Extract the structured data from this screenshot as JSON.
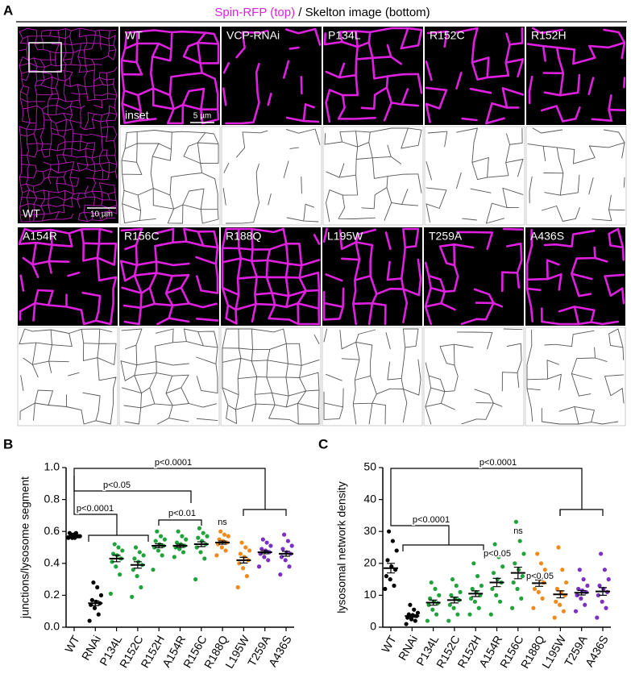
{
  "panel_a": {
    "letter": "A",
    "title_magenta": "Spin-RFP (top)",
    "title_black": " / Skelton image (bottom)",
    "overview_label": "WT",
    "overview_scale": "10 µm",
    "inset_label": "inset",
    "inset_scale": "5 µm",
    "row1": [
      "WT",
      "VCP-RNAi",
      "P134L",
      "R152C",
      "R152H"
    ],
    "row2": [
      "A154R",
      "R156C",
      "R188Q",
      "L195W",
      "T259A",
      "A436S"
    ]
  },
  "chart_data": [
    {
      "type": "dotplot",
      "letter": "B",
      "ylabel": "junctions/lysosome segment",
      "categories": [
        "WT",
        "RNAi",
        "P134L",
        "R152C",
        "R152H",
        "A154R",
        "R156C",
        "R188Q",
        "L195W",
        "T259A",
        "A436S"
      ],
      "colors": [
        "#000000",
        "#000000",
        "#1fa33a",
        "#1fa33a",
        "#1fa33a",
        "#1fa33a",
        "#1fa33a",
        "#f08a1c",
        "#f08a1c",
        "#7b2fc4",
        "#7b2fc4"
      ],
      "points": [
        [
          0.56,
          0.57,
          0.58,
          0.59,
          0.57,
          0.56,
          0.58,
          0.57,
          0.59,
          0.56
        ],
        [
          0.04,
          0.08,
          0.12,
          0.14,
          0.15,
          0.16,
          0.17,
          0.2,
          0.25,
          0.28
        ],
        [
          0.21,
          0.33,
          0.38,
          0.41,
          0.43,
          0.45,
          0.46,
          0.48,
          0.5,
          0.52
        ],
        [
          0.19,
          0.25,
          0.32,
          0.36,
          0.39,
          0.41,
          0.43,
          0.45,
          0.47,
          0.5
        ],
        [
          0.36,
          0.45,
          0.48,
          0.5,
          0.51,
          0.52,
          0.54,
          0.55,
          0.57,
          0.6
        ],
        [
          0.44,
          0.47,
          0.49,
          0.5,
          0.51,
          0.52,
          0.53,
          0.55,
          0.57,
          0.6
        ],
        [
          0.3,
          0.43,
          0.47,
          0.5,
          0.52,
          0.54,
          0.56,
          0.57,
          0.59,
          0.62
        ],
        [
          0.45,
          0.48,
          0.5,
          0.52,
          0.53,
          0.54,
          0.55,
          0.57,
          0.58,
          0.6
        ],
        [
          0.25,
          0.32,
          0.37,
          0.4,
          0.42,
          0.44,
          0.46,
          0.48,
          0.5,
          0.53
        ],
        [
          0.38,
          0.42,
          0.44,
          0.46,
          0.47,
          0.48,
          0.49,
          0.51,
          0.53,
          0.55
        ],
        [
          0.33,
          0.38,
          0.42,
          0.44,
          0.46,
          0.47,
          0.49,
          0.51,
          0.54,
          0.58
        ]
      ],
      "means": [
        0.57,
        0.15,
        0.43,
        0.39,
        0.51,
        0.51,
        0.52,
        0.53,
        0.42,
        0.47,
        0.46
      ],
      "sems": [
        0.005,
        0.015,
        0.02,
        0.02,
        0.012,
        0.01,
        0.015,
        0.01,
        0.018,
        0.01,
        0.015
      ],
      "ylim": [
        0,
        1.0
      ],
      "yticks": [
        {
          "value": 0,
          "label": "0.0"
        },
        0.2,
        0.4,
        0.6,
        0.8,
        {
          "value": 1.0,
          "label": "1.0"
        }
      ],
      "annotations": [
        "p<0.0001",
        "p<0.05",
        "p<0.0001",
        "p<0.01",
        "ns"
      ]
    },
    {
      "type": "dotplot",
      "letter": "C",
      "ylabel": "lysosomal network density",
      "categories": [
        "WT",
        "RNAi",
        "P134L",
        "R152C",
        "R152H",
        "A154R",
        "R156C",
        "R188Q",
        "L195W",
        "T259A",
        "A436S"
      ],
      "colors": [
        "#000000",
        "#000000",
        "#1fa33a",
        "#1fa33a",
        "#1fa33a",
        "#1fa33a",
        "#1fa33a",
        "#f08a1c",
        "#f08a1c",
        "#7b2fc4",
        "#7b2fc4"
      ],
      "points": [
        [
          12,
          13,
          15,
          16,
          18,
          19,
          21,
          24,
          27,
          30
        ],
        [
          1,
          2,
          2.5,
          3,
          3.5,
          3.8,
          4,
          4.5,
          5.5,
          7
        ],
        [
          2,
          4,
          5.5,
          7,
          7.5,
          8,
          9,
          10,
          12,
          14
        ],
        [
          2,
          4,
          6,
          7,
          8.5,
          9,
          10,
          11,
          13,
          15
        ],
        [
          4,
          6,
          8,
          9,
          10,
          11,
          12,
          13,
          16,
          20
        ],
        [
          4,
          8,
          10,
          12,
          14,
          15,
          17,
          19,
          22,
          26
        ],
        [
          6,
          9,
          12,
          14,
          16,
          18,
          20,
          23,
          27,
          33
        ],
        [
          6,
          9,
          11,
          12,
          14,
          15,
          16,
          18,
          20,
          23
        ],
        [
          3,
          5,
          7,
          8,
          10,
          11,
          12,
          14,
          18,
          25
        ],
        [
          5,
          7,
          9,
          10,
          11,
          11.5,
          12,
          13,
          15,
          18
        ],
        [
          3,
          6,
          8,
          10,
          11,
          12,
          13,
          15,
          18,
          23
        ]
      ],
      "means": [
        18.5,
        3.5,
        7.7,
        8.5,
        10.5,
        14,
        17,
        13.8,
        10.3,
        10.8,
        11.2
      ],
      "sems": [
        1.5,
        0.4,
        0.8,
        0.9,
        0.9,
        1.3,
        1.8,
        1,
        1.1,
        0.7,
        1.2
      ],
      "ylim": [
        0,
        50
      ],
      "yticks": [
        0,
        10,
        20,
        30,
        40,
        50
      ],
      "annotations": [
        "p<0.0001",
        "p<0.0001",
        "p<0.05",
        "ns",
        "p<0.05"
      ]
    }
  ]
}
